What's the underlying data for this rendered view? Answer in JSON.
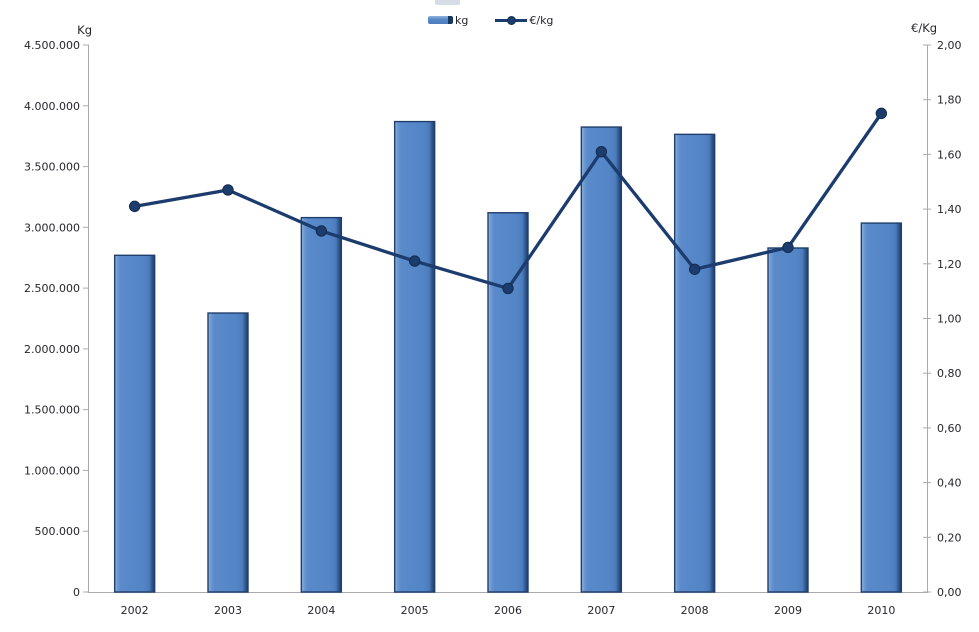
{
  "legend": {
    "position": "top-center",
    "items": [
      {
        "label": "kg",
        "swatch": "bar-swatch-icon"
      },
      {
        "label": "€/kg",
        "swatch": "line-marker-swatch-icon"
      }
    ]
  },
  "colors": {
    "bar_fill": "#5385C6",
    "bar_fill_light": "#8FB2DE",
    "bar_edge": "#1F3E6B",
    "line": "#1C3C6E",
    "marker_stroke": "#142C50",
    "axis_line": "#ABABAB",
    "tick_text": "#26262E",
    "background": "#FFFFFF"
  },
  "chart_data": {
    "type": "bar",
    "subtype": "bar+line dual axis",
    "categories": [
      "2002",
      "2003",
      "2004",
      "2005",
      "2006",
      "2007",
      "2008",
      "2009",
      "2010"
    ],
    "series": [
      {
        "name": "kg",
        "type": "bar",
        "axis": "left",
        "values": [
          2770000,
          2295000,
          3080000,
          3870000,
          3120000,
          3825000,
          3765000,
          2830000,
          3035000
        ]
      },
      {
        "name": "€/kg",
        "type": "line",
        "axis": "right",
        "values": [
          1.41,
          1.47,
          1.32,
          1.21,
          1.11,
          1.61,
          1.18,
          1.26,
          1.75
        ]
      }
    ],
    "left_axis": {
      "label": "Kg",
      "min": 0,
      "max": 4500000,
      "step": 500000,
      "tick_labels": [
        "0",
        "500.000",
        "1.000.000",
        "1.500.000",
        "2.000.000",
        "2.500.000",
        "3.000.000",
        "3.500.000",
        "4.000.000",
        "4.500.000"
      ]
    },
    "right_axis": {
      "label": "€/Kg",
      "min": 0,
      "max": 2,
      "step": 0.2,
      "tick_labels": [
        "0,00",
        "0,20",
        "0,40",
        "0,60",
        "0,80",
        "1,00",
        "1,20",
        "1,40",
        "1,60",
        "1,80",
        "2,00"
      ]
    },
    "grid": false,
    "legend_position": "top-center"
  }
}
